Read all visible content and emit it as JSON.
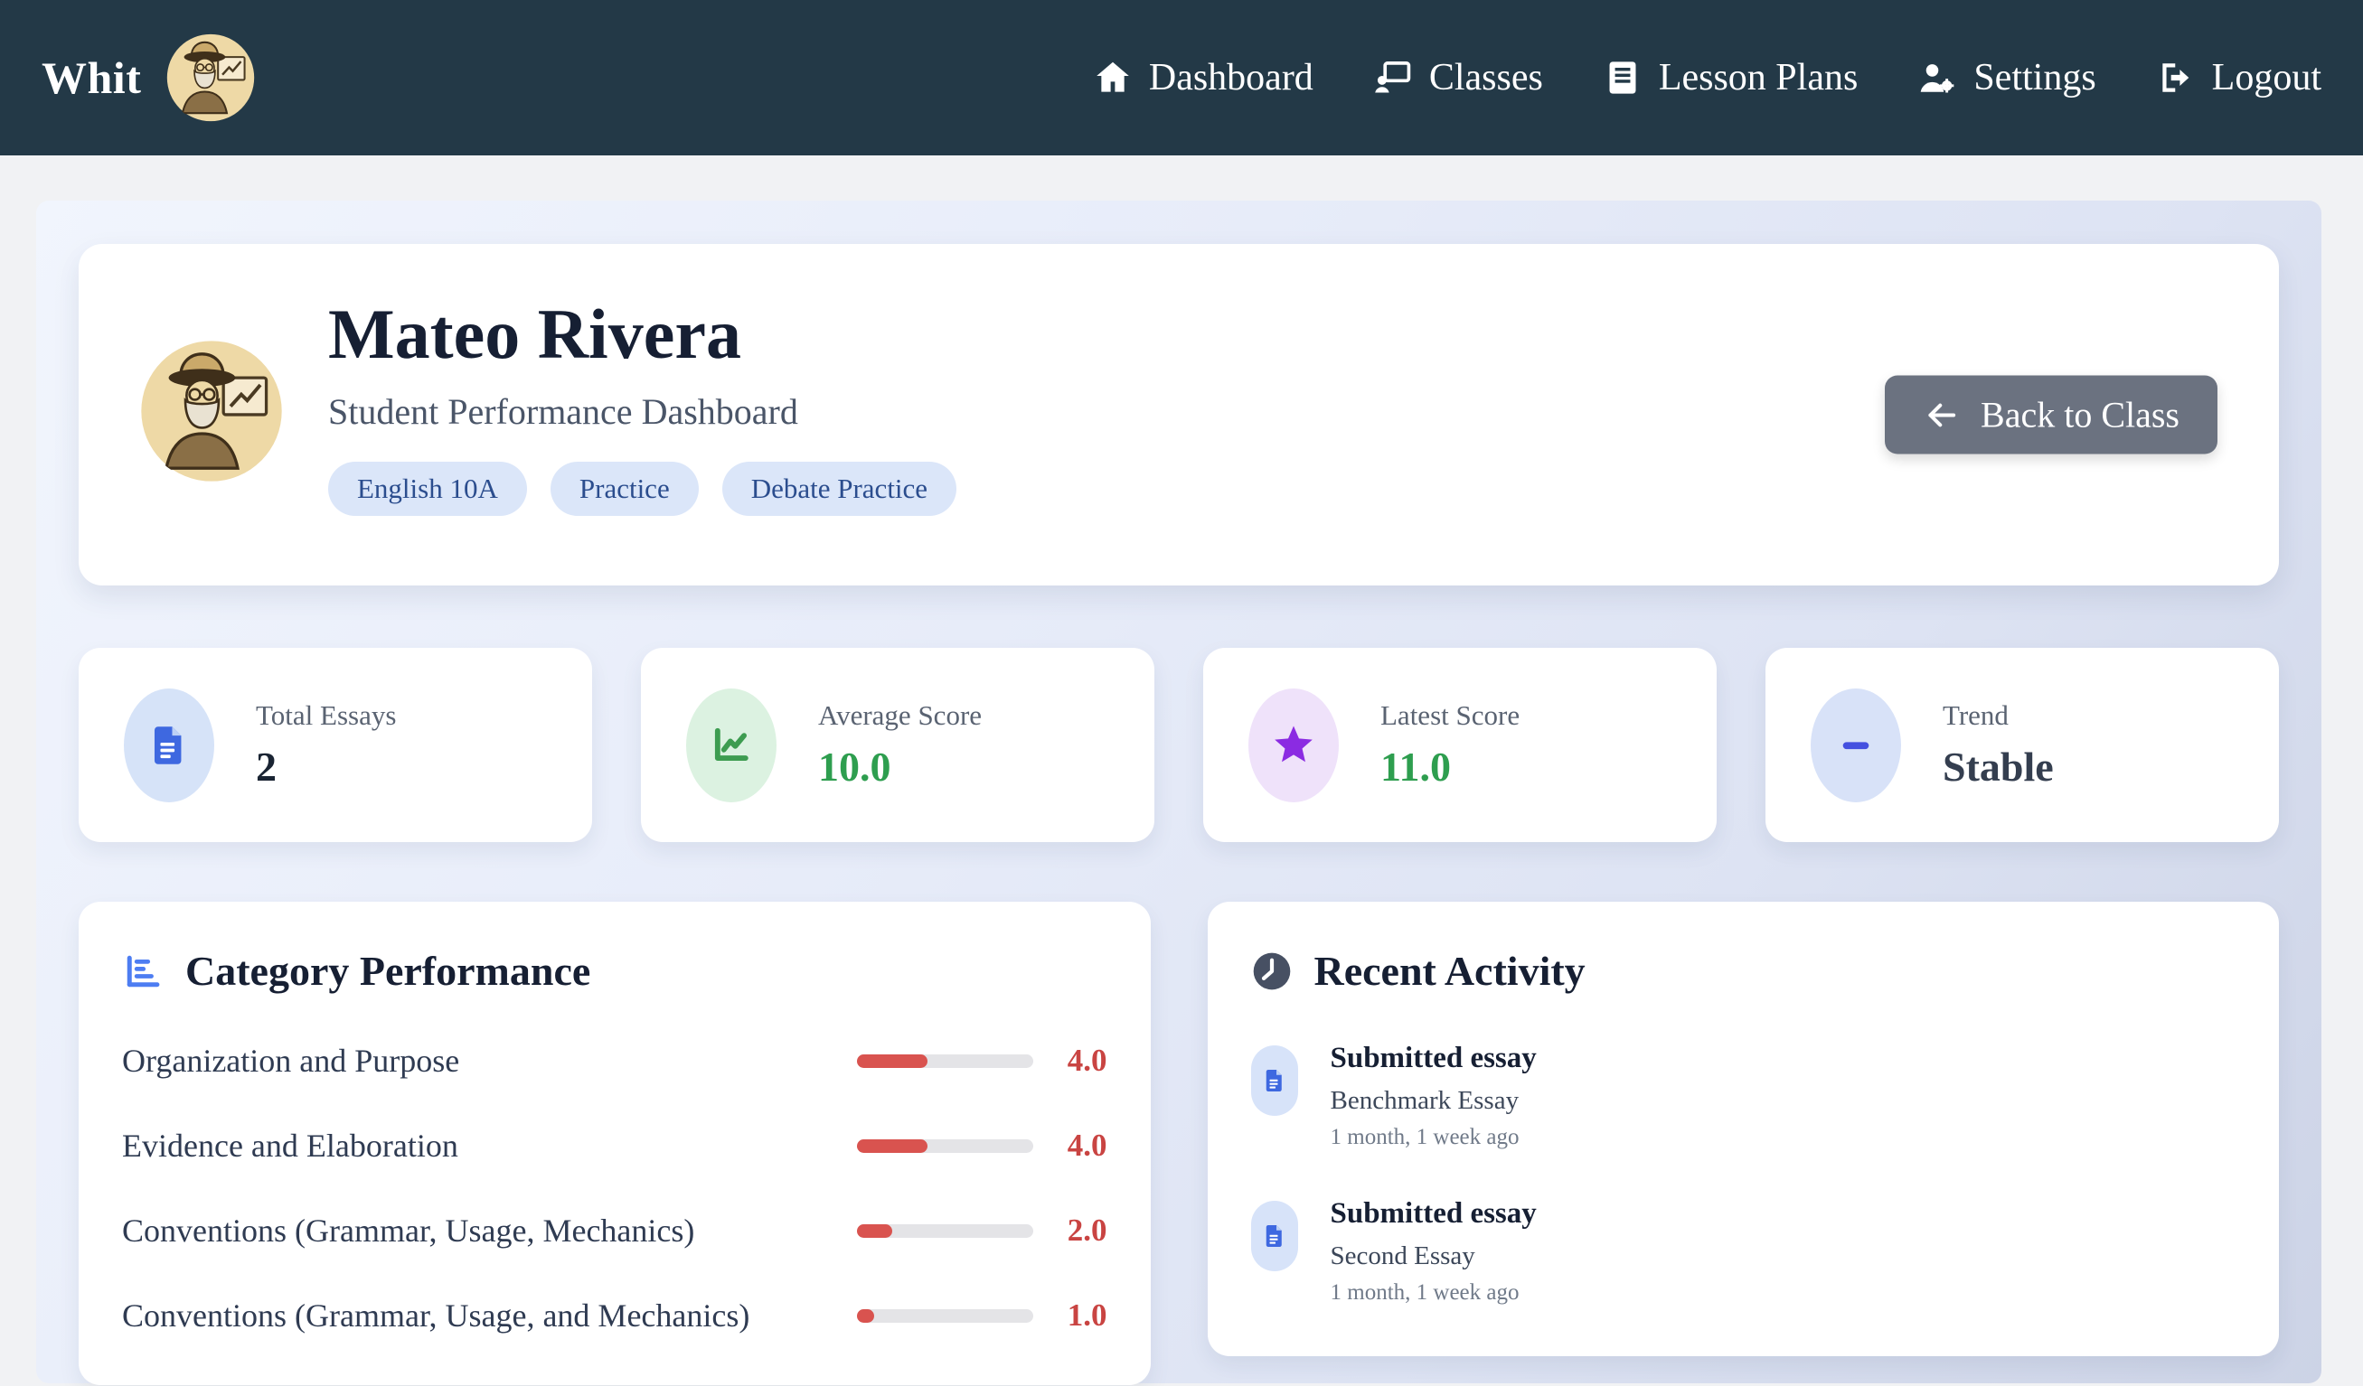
{
  "navbar": {
    "brand": "Whit",
    "items": [
      {
        "label": "Dashboard",
        "icon": "home-icon"
      },
      {
        "label": "Classes",
        "icon": "chalkboard-user-icon"
      },
      {
        "label": "Lesson Plans",
        "icon": "book-icon"
      },
      {
        "label": "Settings",
        "icon": "user-gear-icon"
      },
      {
        "label": "Logout",
        "icon": "logout-icon"
      }
    ]
  },
  "hero": {
    "name": "Mateo Rivera",
    "subtitle": "Student Performance Dashboard",
    "badges": [
      "English 10A",
      "Practice",
      "Debate Practice"
    ],
    "back_button_label": "Back to Class"
  },
  "stats": [
    {
      "label": "Total Essays",
      "value": "2",
      "icon": "file-icon"
    },
    {
      "label": "Average Score",
      "value": "10.0",
      "icon": "chart-line-icon"
    },
    {
      "label": "Latest Score",
      "value": "11.0",
      "icon": "star-icon"
    },
    {
      "label": "Trend",
      "value": "Stable",
      "icon": "minus-icon"
    }
  ],
  "category_performance": {
    "title": "Category Performance",
    "max_score": 10,
    "rows": [
      {
        "label": "Organization and Purpose",
        "value": "4.0",
        "percent": 40
      },
      {
        "label": "Evidence and Elaboration",
        "value": "4.0",
        "percent": 40
      },
      {
        "label": "Conventions (Grammar, Usage, Mechanics)",
        "value": "2.0",
        "percent": 20
      },
      {
        "label": "Conventions (Grammar, Usage, and Mechanics)",
        "value": "1.0",
        "percent": 10
      }
    ]
  },
  "recent_activity": {
    "title": "Recent Activity",
    "items": [
      {
        "action": "Submitted essay",
        "name": "Benchmark Essay",
        "time": "1 month, 1 week ago"
      },
      {
        "action": "Submitted essay",
        "name": "Second Essay",
        "time": "1 month, 1 week ago"
      }
    ]
  },
  "colors": {
    "navbar_bg": "#233947",
    "accent_blue": "#3e68e0",
    "green": "#2e9e4f",
    "purple": "#8b2be2",
    "indigo": "#4450e0",
    "bar_red": "#d9534f",
    "value_red": "#c94442",
    "badge_bg": "#dbe6f9",
    "badge_text": "#2b4d8e",
    "back_button_bg": "#6b7280"
  }
}
